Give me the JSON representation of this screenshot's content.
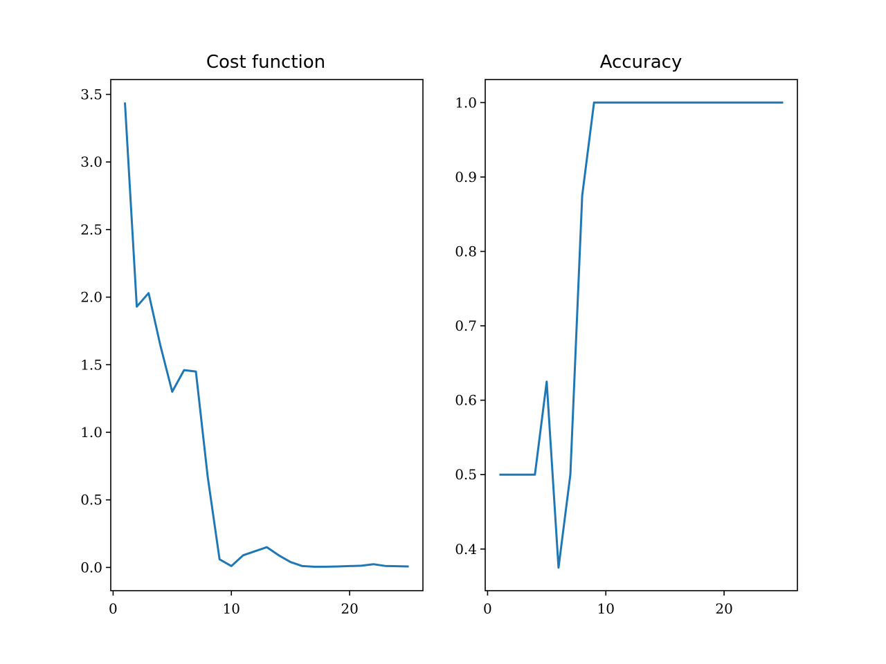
{
  "colors": {
    "line": "#1f77b4",
    "axes": "#000000",
    "background": "#ffffff"
  },
  "chart_data": [
    {
      "type": "line",
      "title": "Cost function",
      "xlabel": "",
      "ylabel": "",
      "xlim": [
        -0.2,
        26.2
      ],
      "ylim": [
        -0.172,
        3.61
      ],
      "xticks": [
        0,
        10,
        20
      ],
      "xtick_labels": [
        "0",
        "10",
        "20"
      ],
      "yticks": [
        0.0,
        0.5,
        1.0,
        1.5,
        2.0,
        2.5,
        3.0,
        3.5
      ],
      "ytick_labels": [
        "0.0",
        "0.5",
        "1.0",
        "1.5",
        "2.0",
        "2.5",
        "3.0",
        "3.5"
      ],
      "grid": false,
      "legend": "none",
      "series": [
        {
          "x": [
            1,
            2,
            3,
            4,
            5,
            6,
            7,
            8,
            9,
            10,
            11,
            12,
            13,
            14,
            15,
            16,
            17,
            18,
            19,
            20,
            21,
            22,
            23,
            24,
            25
          ],
          "values": [
            3.44,
            1.93,
            2.03,
            1.64,
            1.3,
            1.46,
            1.45,
            0.67,
            0.06,
            0.01,
            0.09,
            0.12,
            0.15,
            0.09,
            0.04,
            0.01,
            0.005,
            0.005,
            0.007,
            0.01,
            0.013,
            0.024,
            0.011,
            0.009,
            0.007
          ]
        }
      ]
    },
    {
      "type": "line",
      "title": "Accuracy",
      "xlabel": "",
      "ylabel": "",
      "xlim": [
        -0.2,
        26.2
      ],
      "ylim": [
        0.344,
        1.031
      ],
      "xticks": [
        0,
        10,
        20
      ],
      "xtick_labels": [
        "0",
        "10",
        "20"
      ],
      "yticks": [
        0.4,
        0.5,
        0.6,
        0.7,
        0.8,
        0.9,
        1.0
      ],
      "ytick_labels": [
        "0.4",
        "0.5",
        "0.6",
        "0.7",
        "0.8",
        "0.9",
        "1.0"
      ],
      "grid": false,
      "legend": "none",
      "series": [
        {
          "x": [
            1,
            2,
            3,
            4,
            5,
            6,
            7,
            8,
            9,
            10,
            11,
            12,
            13,
            14,
            15,
            16,
            17,
            18,
            19,
            20,
            21,
            22,
            23,
            24,
            25
          ],
          "values": [
            0.5,
            0.5,
            0.5,
            0.5,
            0.625,
            0.375,
            0.5,
            0.875,
            1.0,
            1.0,
            1.0,
            1.0,
            1.0,
            1.0,
            1.0,
            1.0,
            1.0,
            1.0,
            1.0,
            1.0,
            1.0,
            1.0,
            1.0,
            1.0,
            1.0
          ]
        }
      ]
    }
  ]
}
